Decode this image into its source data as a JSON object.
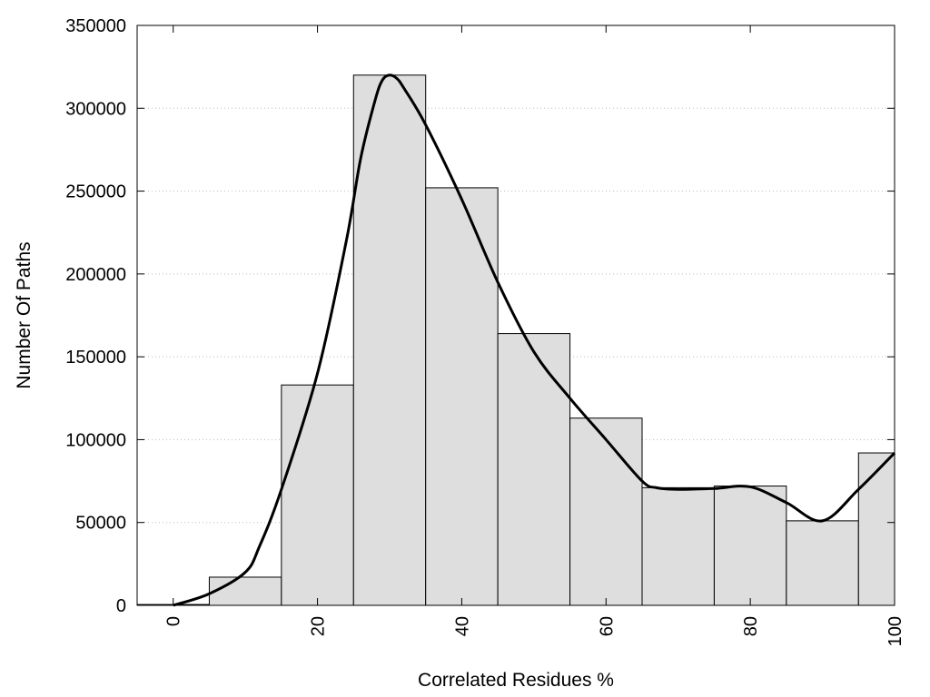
{
  "chart_data": {
    "type": "bar",
    "subtype": "histogram",
    "title": "",
    "xlabel": "Correlated Residues %",
    "ylabel": "Number Of Paths",
    "xlim": [
      -5,
      100
    ],
    "ylim": [
      0,
      350000
    ],
    "xticks": [
      0,
      20,
      40,
      60,
      80,
      100
    ],
    "yticks": [
      0,
      50000,
      100000,
      150000,
      200000,
      250000,
      300000,
      350000
    ],
    "grid": "horizontal-dotted",
    "bin_width": 10,
    "bins": [
      {
        "center": 0,
        "value": 500
      },
      {
        "center": 10,
        "value": 17000
      },
      {
        "center": 20,
        "value": 133000
      },
      {
        "center": 30,
        "value": 320000
      },
      {
        "center": 40,
        "value": 252000
      },
      {
        "center": 50,
        "value": 164000
      },
      {
        "center": 60,
        "value": 113000
      },
      {
        "center": 70,
        "value": 71000
      },
      {
        "center": 80,
        "value": 72000
      },
      {
        "center": 90,
        "value": 51000
      },
      {
        "center": 100,
        "value": 92000
      }
    ],
    "density_curve": {
      "x": [
        0,
        5,
        10,
        12,
        15,
        20,
        24,
        26,
        28,
        29,
        30,
        31,
        32,
        35,
        40,
        45,
        50,
        55,
        60,
        65,
        67,
        70,
        75,
        80,
        85,
        90,
        95,
        100
      ],
      "y": [
        0,
        7000,
        20000,
        36000,
        70000,
        140000,
        220000,
        270000,
        305000,
        317000,
        320000,
        318000,
        312000,
        290000,
        245000,
        195000,
        153000,
        125000,
        100000,
        75000,
        71000,
        70000,
        70500,
        71500,
        62000,
        51000,
        70000,
        92000
      ]
    },
    "colors": {
      "bar_fill": "#dedede",
      "bar_stroke": "#000000",
      "curve": "#000000",
      "grid": "#bbbbbb"
    }
  }
}
